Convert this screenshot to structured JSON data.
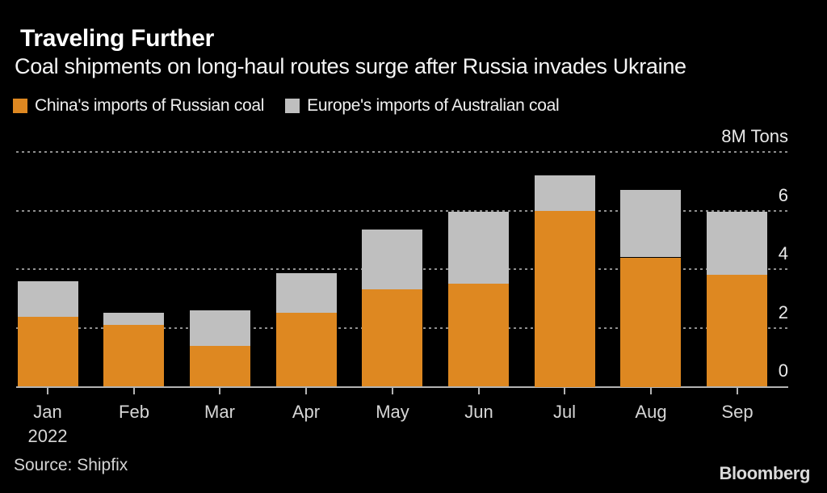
{
  "header": {
    "title": "Traveling Further",
    "subtitle": "Coal shipments on long-haul routes surge after Russia invades Ukraine"
  },
  "chart_data": {
    "type": "bar",
    "stacked": true,
    "title": "Traveling Further",
    "subtitle": "Coal shipments on long-haul routes surge after Russia invades Ukraine",
    "unit_label": "8M Tons",
    "categories": [
      "Jan",
      "Feb",
      "Mar",
      "Apr",
      "May",
      "Jun",
      "Jul",
      "Aug",
      "Sep"
    ],
    "x_year_label": "2022",
    "series": [
      {
        "name": "China's imports of Russian coal",
        "color": "#DE8821",
        "values": [
          2.4,
          2.1,
          1.4,
          2.5,
          3.3,
          3.5,
          6.0,
          4.4,
          3.8
        ]
      },
      {
        "name": "Europe's imports of Australian coal",
        "color": "#BFBFBF",
        "values": [
          1.2,
          0.4,
          1.2,
          1.35,
          2.05,
          2.45,
          1.2,
          2.3,
          2.15
        ]
      }
    ],
    "ylim": [
      0,
      8
    ],
    "y_ticks": [
      {
        "value": 8,
        "label": "8M Tons"
      },
      {
        "value": 6,
        "label": "6"
      },
      {
        "value": 4,
        "label": "4"
      },
      {
        "value": 2,
        "label": "2"
      },
      {
        "value": 0,
        "label": "0"
      }
    ],
    "grid": "dotted-horizontal",
    "legend_position": "top"
  },
  "footer": {
    "source": "Source:  Shipfix",
    "branding": "Bloomberg"
  }
}
